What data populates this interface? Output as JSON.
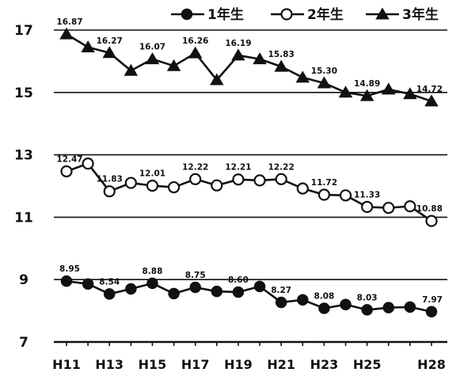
{
  "chart_data": {
    "type": "line",
    "title": "",
    "xlabel": "",
    "ylabel": "",
    "ylim": [
      7,
      17.7
    ],
    "yticks": [
      7,
      9,
      11,
      13,
      15,
      17
    ],
    "grid_lines": [
      9,
      11,
      13,
      15,
      17
    ],
    "categories": [
      "H11",
      "H12",
      "H13",
      "H14",
      "H15",
      "H16",
      "H17",
      "H18",
      "H19",
      "H20",
      "H21",
      "H22",
      "H23",
      "H24",
      "H25",
      "H26",
      "H27",
      "H28"
    ],
    "x_tick_labels": [
      "H11",
      "H13",
      "H15",
      "H17",
      "H19",
      "H21",
      "H23",
      "H25",
      "H28"
    ],
    "x_tick_index": [
      0,
      2,
      4,
      6,
      8,
      10,
      12,
      14,
      17
    ],
    "legend_position": "top-right",
    "series": [
      {
        "name": "1年生",
        "marker": "filled-circle",
        "values": [
          8.95,
          8.86,
          8.54,
          8.7,
          8.88,
          8.55,
          8.75,
          8.62,
          8.6,
          8.78,
          8.27,
          8.35,
          8.08,
          8.2,
          8.03,
          8.1,
          8.12,
          7.97
        ]
      },
      {
        "name": "2年生",
        "marker": "open-circle",
        "values": [
          12.47,
          12.72,
          11.83,
          12.1,
          12.01,
          11.96,
          12.22,
          12.02,
          12.21,
          12.18,
          12.22,
          11.92,
          11.72,
          11.7,
          11.33,
          11.3,
          11.35,
          10.88
        ]
      },
      {
        "name": "3年生",
        "marker": "triangle",
        "values": [
          16.87,
          16.45,
          16.27,
          15.7,
          16.07,
          15.85,
          16.26,
          15.4,
          16.19,
          16.07,
          15.83,
          15.48,
          15.3,
          15.0,
          14.89,
          15.1,
          14.95,
          14.72
        ]
      }
    ],
    "annotations": [
      {
        "series": 0,
        "index": 0,
        "text": "8.95"
      },
      {
        "series": 0,
        "index": 2,
        "text": "8.54"
      },
      {
        "series": 0,
        "index": 4,
        "text": "8.88"
      },
      {
        "series": 0,
        "index": 6,
        "text": "8.75"
      },
      {
        "series": 0,
        "index": 8,
        "text": "8.60"
      },
      {
        "series": 0,
        "index": 10,
        "text": "8.27"
      },
      {
        "series": 0,
        "index": 12,
        "text": "8.08"
      },
      {
        "series": 0,
        "index": 14,
        "text": "8.03"
      },
      {
        "series": 0,
        "index": 17,
        "text": "7.97"
      },
      {
        "series": 1,
        "index": 0,
        "text": "12.47"
      },
      {
        "series": 1,
        "index": 2,
        "text": "11.83"
      },
      {
        "series": 1,
        "index": 4,
        "text": "12.01"
      },
      {
        "series": 1,
        "index": 6,
        "text": "12.22"
      },
      {
        "series": 1,
        "index": 8,
        "text": "12.21"
      },
      {
        "series": 1,
        "index": 10,
        "text": "12.22"
      },
      {
        "series": 1,
        "index": 12,
        "text": "11.72"
      },
      {
        "series": 1,
        "index": 14,
        "text": "11.33"
      },
      {
        "series": 1,
        "index": 17,
        "text": "10.88"
      },
      {
        "series": 2,
        "index": 0,
        "text": "16.87"
      },
      {
        "series": 2,
        "index": 2,
        "text": "16.27"
      },
      {
        "series": 2,
        "index": 4,
        "text": "16.07"
      },
      {
        "series": 2,
        "index": 6,
        "text": "16.26"
      },
      {
        "series": 2,
        "index": 8,
        "text": "16.19"
      },
      {
        "series": 2,
        "index": 10,
        "text": "15.83"
      },
      {
        "series": 2,
        "index": 12,
        "text": "15.30"
      },
      {
        "series": 2,
        "index": 14,
        "text": "14.89"
      },
      {
        "series": 2,
        "index": 17,
        "text": "14.72"
      }
    ]
  }
}
